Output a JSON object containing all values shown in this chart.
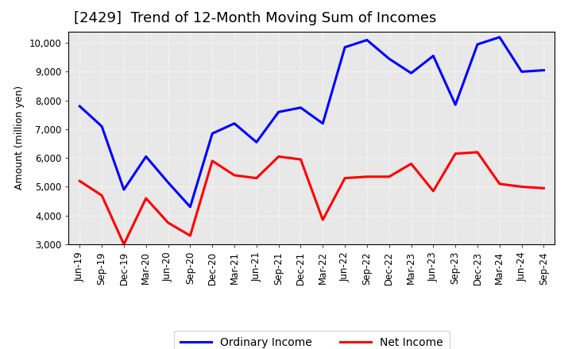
{
  "title": "[2429]  Trend of 12-Month Moving Sum of Incomes",
  "ylabel": "Amount (million yen)",
  "ylim": [
    3000,
    10400
  ],
  "yticks": [
    3000,
    4000,
    5000,
    6000,
    7000,
    8000,
    9000,
    10000
  ],
  "background_color": "#ffffff",
  "plot_bg_color": "#e8e8e8",
  "grid_color": "#ffffff",
  "x_labels": [
    "Jun-19",
    "Sep-19",
    "Dec-19",
    "Mar-20",
    "Jun-20",
    "Sep-20",
    "Dec-20",
    "Mar-21",
    "Jun-21",
    "Sep-21",
    "Dec-21",
    "Mar-22",
    "Jun-22",
    "Sep-22",
    "Dec-22",
    "Mar-23",
    "Jun-23",
    "Sep-23",
    "Dec-23",
    "Mar-24",
    "Jun-24",
    "Sep-24"
  ],
  "ordinary_income": [
    7800,
    7100,
    4900,
    6050,
    5150,
    4300,
    6850,
    7200,
    6550,
    7600,
    7750,
    7200,
    9850,
    10100,
    9450,
    8950,
    9550,
    7850,
    9950,
    10200,
    9000,
    9050
  ],
  "net_income": [
    5200,
    4700,
    3000,
    4600,
    3750,
    3300,
    5900,
    5400,
    5300,
    6050,
    5950,
    3850,
    5300,
    5350,
    5350,
    5800,
    4850,
    6150,
    6200,
    5100,
    5000,
    4950
  ],
  "ordinary_color": "#0000ff",
  "net_color": "#ff0000",
  "line_width": 2.2,
  "title_fontsize": 13,
  "label_fontsize": 9,
  "tick_fontsize": 8.5,
  "legend_fontsize": 10
}
